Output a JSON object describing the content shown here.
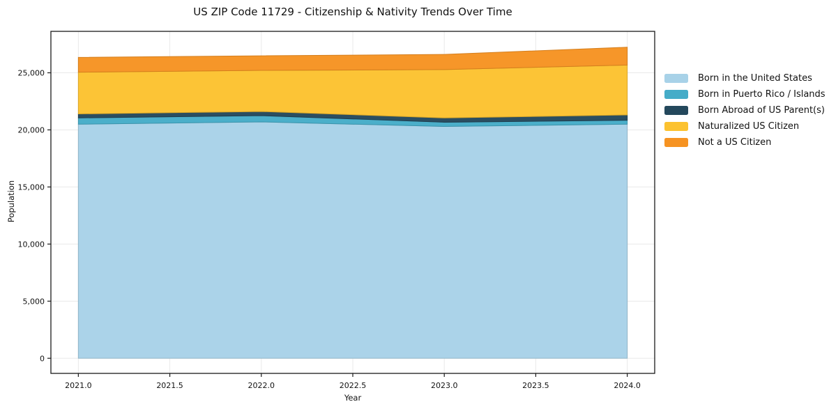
{
  "title": "US ZIP Code 11729 - Citizenship & Nativity Trends Over Time",
  "chart_data": {
    "type": "area",
    "stacked": true,
    "title": "US ZIP Code 11729 - Citizenship & Nativity Trends Over Time",
    "xlabel": "Year",
    "ylabel": "Population",
    "x": [
      2021,
      2022,
      2023,
      2024
    ],
    "series": [
      {
        "name": "Born in the United States",
        "color": "#a8d2e8",
        "values": [
          20500,
          20700,
          20300,
          20500
        ]
      },
      {
        "name": "Born in Puerto Rico / Islands",
        "color": "#45acc8",
        "values": [
          550,
          550,
          370,
          340
        ]
      },
      {
        "name": "Born Abroad of US Parent(s)",
        "color": "#24485c",
        "values": [
          350,
          360,
          380,
          470
        ]
      },
      {
        "name": "Naturalized US Citizen",
        "color": "#fcc22f",
        "values": [
          3650,
          3600,
          4230,
          4370
        ]
      },
      {
        "name": "Not a US Citizen",
        "color": "#f69322",
        "values": [
          1300,
          1280,
          1330,
          1560
        ]
      }
    ],
    "x_tick_labels": [
      "2021.0",
      "2021.5",
      "2022.0",
      "2022.5",
      "2023.0",
      "2023.5",
      "2024.0"
    ],
    "x_tick_values": [
      2021,
      2021.5,
      2022,
      2022.5,
      2023,
      2023.5,
      2024
    ],
    "y_tick_labels": [
      "0",
      "5,000",
      "10,000",
      "15,000",
      "20,000",
      "25,000"
    ],
    "y_tick_values": [
      0,
      5000,
      10000,
      15000,
      20000,
      25000
    ],
    "xlim": [
      2020.85,
      2024.15
    ],
    "ylim": [
      -1325,
      28630
    ],
    "grid": true,
    "grid_color": "#e9e9e9",
    "spine_color": "#1a1a1a",
    "legend_position": "right"
  }
}
